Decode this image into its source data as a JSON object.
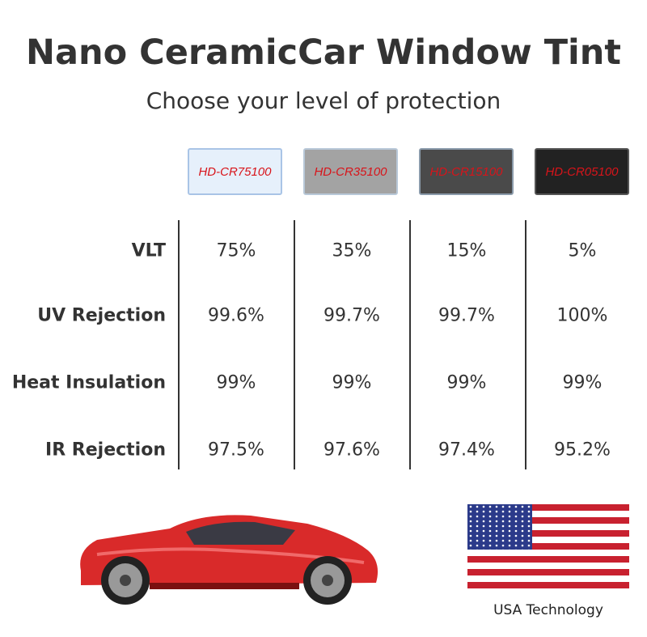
{
  "header": {
    "title": "Nano CeramicCar Window Tint",
    "subtitle": "Choose your level of protection"
  },
  "table": {
    "products": [
      "HD-CR75100",
      "HD-CR35100",
      "HD-CR15100",
      "HD-CR05100"
    ],
    "rows": [
      {
        "label": "VLT",
        "values": [
          "75%",
          "35%",
          "15%",
          "5%"
        ]
      },
      {
        "label": "UV Rejection",
        "values": [
          "99.6%",
          "99.7%",
          "99.7%",
          "100%"
        ]
      },
      {
        "label": "Heat Insulation",
        "values": [
          "99%",
          "99%",
          "99%",
          "99%"
        ]
      },
      {
        "label": "IR Rejection",
        "values": [
          "97.5%",
          "97.6%",
          "97.4%",
          "95.2%"
        ]
      }
    ]
  },
  "footer": {
    "caption": "USA Technology"
  }
}
